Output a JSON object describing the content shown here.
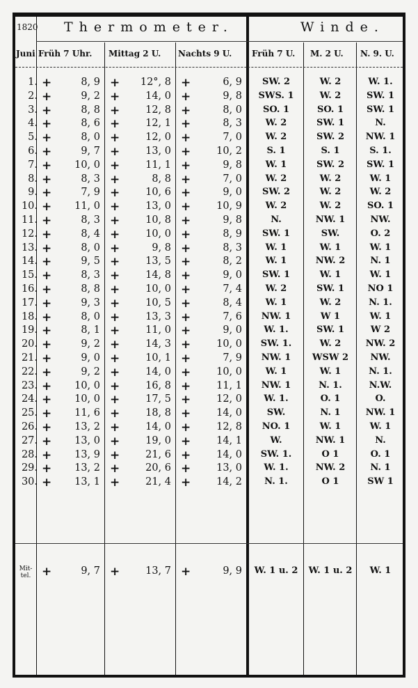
{
  "header": {
    "year": "1820",
    "month": "Juni",
    "thermometer": "Thermometer.",
    "winde": "Winde.",
    "columns": [
      "Früh 7 Uhr.",
      "Mittag 2 U.",
      "Nachts 9 U.",
      "Früh 7 U.",
      "M. 2 U.",
      "N. 9. U."
    ]
  },
  "rows": [
    {
      "day": "1.",
      "t": [
        "8, 9",
        "12°, 8",
        "6, 9"
      ],
      "w": [
        "SW. 2",
        "W. 2",
        "W. 1."
      ]
    },
    {
      "day": "2.",
      "t": [
        "9, 2",
        "14, 0",
        "9, 8"
      ],
      "w": [
        "SWS. 1",
        "W. 2",
        "SW. 1"
      ]
    },
    {
      "day": "3.",
      "t": [
        "8, 8",
        "12, 8",
        "8, 0"
      ],
      "w": [
        "SO. 1",
        "SO. 1",
        "SW. 1"
      ]
    },
    {
      "day": "4.",
      "t": [
        "8, 6",
        "12, 1",
        "8, 3"
      ],
      "w": [
        "W. 2",
        "SW. 1",
        "N."
      ]
    },
    {
      "day": "5.",
      "t": [
        "8, 0",
        "12, 0",
        "7, 0"
      ],
      "w": [
        "W. 2",
        "SW. 2",
        "NW. 1"
      ]
    },
    {
      "day": "6.",
      "t": [
        "9, 7",
        "13, 0",
        "10, 2"
      ],
      "w": [
        "S. 1",
        "S. 1",
        "S. 1."
      ]
    },
    {
      "day": "7.",
      "t": [
        "10, 0",
        "11, 1",
        "9, 8"
      ],
      "w": [
        "W. 1",
        "SW. 2",
        "SW. 1"
      ]
    },
    {
      "day": "8.",
      "t": [
        "8, 3",
        "8, 8",
        "7, 0"
      ],
      "w": [
        "W. 2",
        "W. 2",
        "W. 1"
      ]
    },
    {
      "day": "9.",
      "t": [
        "7, 9",
        "10, 6",
        "9, 0"
      ],
      "w": [
        "SW. 2",
        "W. 2",
        "W. 2"
      ]
    },
    {
      "day": "10.",
      "t": [
        "11, 0",
        "13, 0",
        "10, 9"
      ],
      "w": [
        "W. 2",
        "W. 2",
        "SO. 1"
      ]
    },
    {
      "day": "11.",
      "t": [
        "8, 3",
        "10, 8",
        "9, 8"
      ],
      "w": [
        "N.",
        "NW. 1",
        "NW."
      ]
    },
    {
      "day": "12.",
      "t": [
        "8, 4",
        "10, 0",
        "8, 9"
      ],
      "w": [
        "SW. 1",
        "SW.",
        "O. 2"
      ]
    },
    {
      "day": "13.",
      "t": [
        "8, 0",
        "9, 8",
        "8, 3"
      ],
      "w": [
        "W. 1",
        "W. 1",
        "W. 1"
      ]
    },
    {
      "day": "14.",
      "t": [
        "9, 5",
        "13, 5",
        "8, 2"
      ],
      "w": [
        "W. 1",
        "NW. 2",
        "N. 1"
      ]
    },
    {
      "day": "15.",
      "t": [
        "8, 3",
        "14, 8",
        "9, 0"
      ],
      "w": [
        "SW. 1",
        "W. 1",
        "W. 1"
      ]
    },
    {
      "day": "16.",
      "t": [
        "8, 8",
        "10, 0",
        "7, 4"
      ],
      "w": [
        "W. 2",
        "SW. 1",
        "NO 1"
      ]
    },
    {
      "day": "17.",
      "t": [
        "9, 3",
        "10, 5",
        "8, 4"
      ],
      "w": [
        "W. 1",
        "W. 2",
        "N. 1."
      ]
    },
    {
      "day": "18.",
      "t": [
        "8, 0",
        "13, 3",
        "7, 6"
      ],
      "w": [
        "NW. 1",
        "W 1",
        "W. 1"
      ]
    },
    {
      "day": "19.",
      "t": [
        "8, 1",
        "11, 0",
        "9, 0"
      ],
      "w": [
        "W. 1.",
        "SW. 1",
        "W 2"
      ]
    },
    {
      "day": "20.",
      "t": [
        "9, 2",
        "14, 3",
        "10, 0"
      ],
      "w": [
        "SW. 1.",
        "W. 2",
        "NW. 2"
      ]
    },
    {
      "day": "21.",
      "t": [
        "9, 0",
        "10, 1",
        "7, 9"
      ],
      "w": [
        "NW. 1",
        "WSW 2",
        "NW."
      ]
    },
    {
      "day": "22.",
      "t": [
        "9, 2",
        "14, 0",
        "10, 0"
      ],
      "w": [
        "W. 1",
        "W. 1",
        "N. 1."
      ]
    },
    {
      "day": "23.",
      "t": [
        "10, 0",
        "16, 8",
        "11, 1"
      ],
      "w": [
        "NW. 1",
        "N. 1.",
        "N.W."
      ]
    },
    {
      "day": "24.",
      "t": [
        "10, 0",
        "17, 5",
        "12, 0"
      ],
      "w": [
        "W. 1.",
        "O. 1",
        "O."
      ]
    },
    {
      "day": "25.",
      "t": [
        "11, 6",
        "18, 8",
        "14, 0"
      ],
      "w": [
        "SW.",
        "N. 1",
        "NW. 1"
      ]
    },
    {
      "day": "26.",
      "t": [
        "13, 2",
        "14, 0",
        "12, 8"
      ],
      "w": [
        "NO. 1",
        "W. 1",
        "W. 1"
      ]
    },
    {
      "day": "27.",
      "t": [
        "13, 0",
        "19, 0",
        "14, 1"
      ],
      "w": [
        "W.",
        "NW. 1",
        "N."
      ]
    },
    {
      "day": "28.",
      "t": [
        "13, 9",
        "21, 6",
        "14, 0"
      ],
      "w": [
        "SW. 1.",
        "O 1",
        "O. 1"
      ]
    },
    {
      "day": "29.",
      "t": [
        "13, 2",
        "20, 6",
        "13, 0"
      ],
      "w": [
        "W. 1.",
        "NW. 2",
        "N. 1"
      ]
    },
    {
      "day": "30.",
      "t": [
        "13, 1",
        "21, 4",
        "14, 2"
      ],
      "w": [
        "N. 1.",
        "O 1",
        "SW 1"
      ]
    }
  ],
  "mittel": {
    "label": "Mit-tel.",
    "t": [
      "9, 7",
      "13, 7",
      "9, 9"
    ],
    "w": [
      "W. 1 u. 2",
      "W. 1 u. 2",
      "W. 1"
    ]
  },
  "plus_sign": "+"
}
